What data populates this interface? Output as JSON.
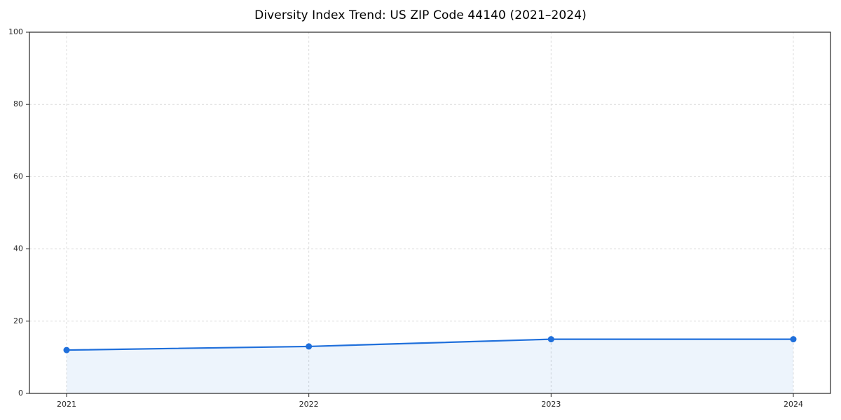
{
  "chart_data": {
    "type": "area",
    "title": "Diversity Index Trend: US ZIP Code 44140 (2021–2024)",
    "x": [
      "2021",
      "2022",
      "2023",
      "2024"
    ],
    "values": [
      12,
      13,
      15,
      15
    ],
    "xlabel": "",
    "ylabel": "",
    "ylim": [
      0,
      100
    ],
    "yticks": [
      0,
      20,
      40,
      60,
      80,
      100
    ],
    "grid": true,
    "grid_style": "dashed",
    "legend": "none",
    "line_color": "#1f6fdb",
    "marker_color": "#1f6fdb",
    "fill_color": "#1f6fdb",
    "fill_opacity": 0.08,
    "grid_color": "#dcdcdc",
    "frame_color": "#262626",
    "background_color": "#ffffff"
  }
}
